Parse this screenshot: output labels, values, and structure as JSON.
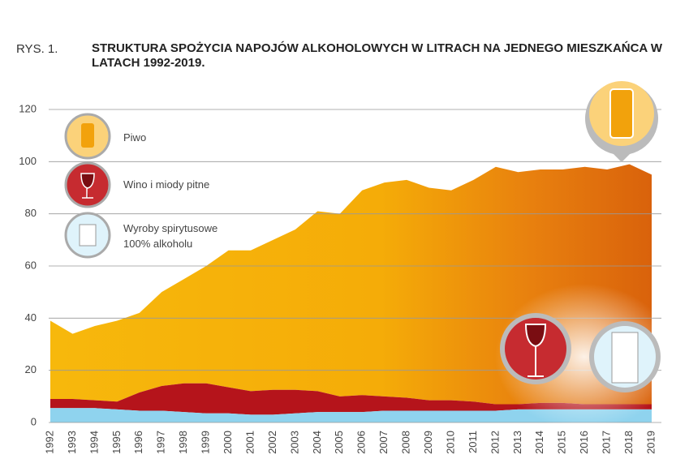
{
  "chart_data": {
    "type": "stacked-area",
    "figure_label": "RYS. 1.",
    "title": "STRUKTURA SPOŻYCIA NAPOJÓW ALKOHOLOWYCH W LITRACH NA JEDNEGO MIESZKAŃCA W LATACH 1992-2019.",
    "categories": [
      "1992",
      "1993",
      "1994",
      "1995",
      "1996",
      "1997",
      "1998",
      "1999",
      "2000",
      "2001",
      "2002",
      "2003",
      "2004",
      "2005",
      "2006",
      "2007",
      "2008",
      "2009",
      "2010",
      "2011",
      "2012",
      "2013",
      "2014",
      "2015",
      "2016",
      "2017",
      "2018",
      "2019"
    ],
    "series": [
      {
        "name": "Wyroby spirytusowe 100% alkoholu",
        "color": "#8fd3ee",
        "values": [
          5.5,
          5.5,
          5.5,
          5,
          4.5,
          4.5,
          4,
          3.5,
          3.5,
          3,
          3,
          3.5,
          4,
          4,
          4,
          4.5,
          4.5,
          4.5,
          4.5,
          4.5,
          4.5,
          5,
          5,
          5,
          5,
          5,
          5,
          5
        ]
      },
      {
        "name": "Wino i miody pitne",
        "color": "#b5141b",
        "values": [
          3.5,
          3.5,
          3,
          3,
          7,
          9.5,
          11,
          11.5,
          10,
          9,
          9.5,
          9,
          8,
          6,
          6.5,
          5.5,
          5,
          4,
          4,
          3.5,
          2.5,
          2,
          2.5,
          2.5,
          2,
          2,
          2,
          2
        ]
      },
      {
        "name": "Piwo",
        "color": "#f5ab0a",
        "values": [
          30,
          25,
          28.5,
          31,
          30.5,
          36,
          40,
          45,
          52.5,
          54,
          57.5,
          61.5,
          69,
          70,
          78.5,
          82,
          83.5,
          81.5,
          80.5,
          85,
          91,
          89,
          89.5,
          89.5,
          91,
          90,
          92,
          88
        ]
      }
    ],
    "ylim": [
      0,
      120
    ],
    "yticks": [
      0,
      20,
      40,
      60,
      80,
      100,
      120
    ],
    "grid": true
  }
}
